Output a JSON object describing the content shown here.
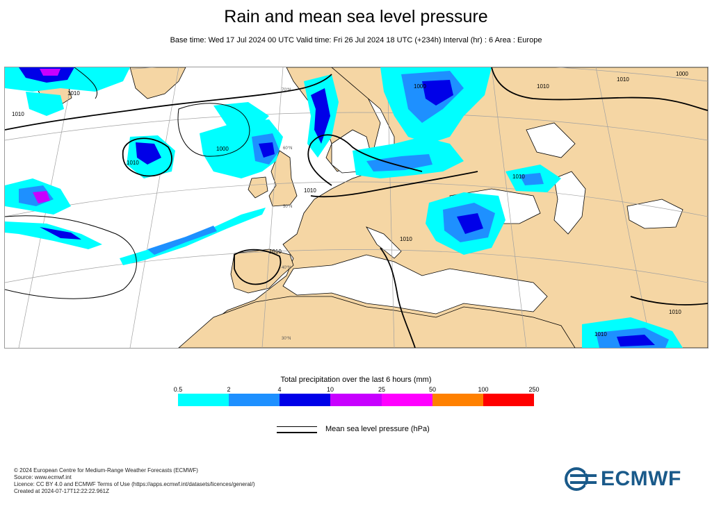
{
  "header": {
    "title": "Rain and mean sea level pressure",
    "subtitle": "Base time: Wed 17 Jul 2024 00 UTC Valid time: Fri 26 Jul 2024 18 UTC (+234h) Interval (hr) : 6 Area : Europe"
  },
  "map": {
    "isobar_labels": [
      "1010",
      "1010",
      "1000",
      "1010",
      "1010",
      "1010",
      "1000",
      "1010",
      "1000",
      "1010",
      "1010",
      "1010",
      "1010",
      "1010"
    ],
    "graticule_labels": [
      "70°N",
      "60°N",
      "50°N",
      "40°N",
      "30°N"
    ],
    "colors": {
      "land": "#f5d6a4",
      "sea": "#ffffff",
      "coast": "#000000",
      "graticule": "#a0a0a0"
    }
  },
  "legend": {
    "title": "Total precipitation over the last 6 hours (mm)",
    "ticks": [
      "0.5",
      "2",
      "4",
      "10",
      "25",
      "50",
      "100",
      "250"
    ],
    "colors": [
      "#00ffff",
      "#1e90ff",
      "#0000e8",
      "#c800ff",
      "#ff00ff",
      "#ff8000",
      "#ff0000"
    ],
    "pressure_label": "Mean sea level pressure (hPa)"
  },
  "footer": {
    "line1": "© 2024 European Centre for Medium-Range Weather Forecasts (ECMWF)",
    "line2": "Source: www.ecmwf.int",
    "line3": "Licence: CC BY 4.0 and ECMWF Terms of Use (https://apps.ecmwf.int/datasets/licences/general/)",
    "line4": "Created at 2024-07-17T12:22:22.961Z"
  },
  "logo": {
    "text": "ECMWF",
    "color": "#1a5a8a"
  }
}
